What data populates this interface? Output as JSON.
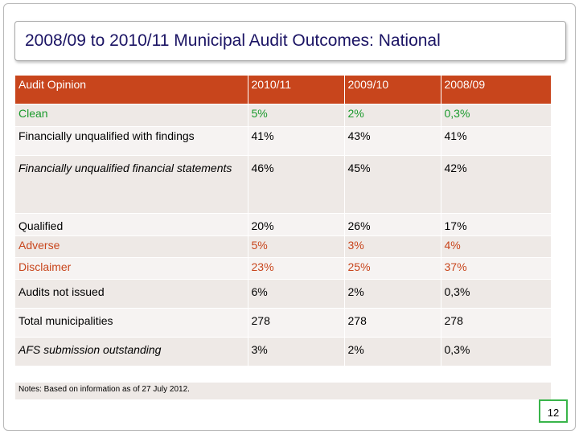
{
  "title": "2008/09 to 2010/11 Municipal Audit Outcomes: National",
  "table": {
    "headers": [
      "Audit  Opinion",
      "2010/11",
      "2009/10",
      "2008/09"
    ],
    "rows": [
      {
        "label": "Clean",
        "values": [
          "5%",
          "2%",
          "0,3%"
        ]
      },
      {
        "label": "Financially unqualified with findings",
        "values": [
          "41%",
          "43%",
          "41%"
        ]
      },
      {
        "label": "Financially      unqualified      financial statements",
        "values": [
          "46%",
          "45%",
          "42%"
        ]
      },
      {
        "label": "Qualified",
        "values": [
          "20%",
          "26%",
          "17%"
        ]
      },
      {
        "label": "Adverse",
        "values": [
          "5%",
          "3%",
          "4%"
        ]
      },
      {
        "label": "Disclaimer",
        "values": [
          "23%",
          "25%",
          "37%"
        ]
      },
      {
        "label": "Audits not issued",
        "values": [
          "6%",
          "2%",
          "0,3%"
        ]
      },
      {
        "label": "Total municipalities",
        "values": [
          "278",
          "278",
          "278"
        ]
      },
      {
        "label": "AFS submission outstanding",
        "values": [
          "3%",
          "2%",
          "0,3%"
        ]
      }
    ]
  },
  "notes": "Notes: Based on information as of 27 July 2012.",
  "page_number": "12",
  "colors": {
    "header_bg": "#c8451c",
    "clean_text": "#1a9a2c",
    "adverse_text": "#c8451c",
    "title_text": "#1b1464",
    "badge_border": "#39b54a"
  }
}
